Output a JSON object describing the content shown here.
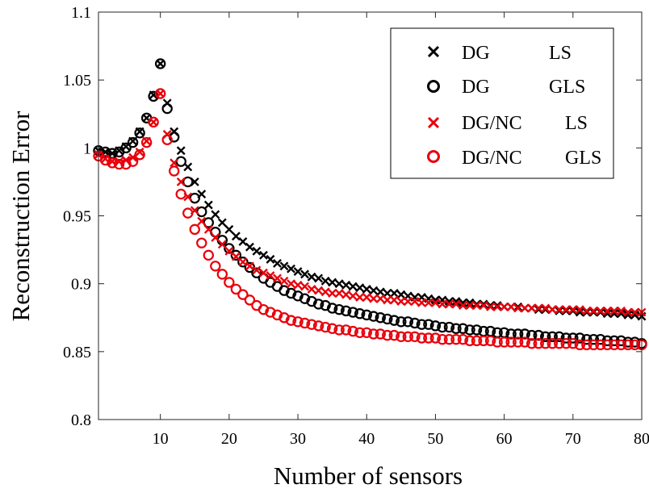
{
  "chart_data": {
    "type": "scatter",
    "title": "",
    "xlabel": "Number of sensors",
    "ylabel": "Reconstruction Error",
    "xlim": [
      1,
      80
    ],
    "ylim": [
      0.8,
      1.1
    ],
    "xticks": [
      10,
      20,
      30,
      40,
      50,
      60,
      70,
      80
    ],
    "yticks": [
      0.8,
      0.85,
      0.9,
      0.95,
      1,
      1.05,
      1.1
    ],
    "xtick_labels": [
      "10",
      "20",
      "30",
      "40",
      "50",
      "60",
      "70",
      "80"
    ],
    "ytick_labels": [
      "0.8",
      "0.85",
      "0.9",
      "0.95",
      "1",
      "1.05",
      "1.1"
    ],
    "grid": false,
    "legend_position": "top-right",
    "legend": [
      {
        "method": "DG",
        "solver": "LS",
        "marker": "x",
        "color": "#000000"
      },
      {
        "method": "DG",
        "solver": "GLS",
        "marker": "o",
        "color": "#000000"
      },
      {
        "method": "DG/NC",
        "solver": "LS",
        "marker": "x",
        "color": "#e8000b"
      },
      {
        "method": "DG/NC",
        "solver": "GLS",
        "marker": "o",
        "color": "#e8000b"
      }
    ],
    "series": [
      {
        "name": "DG LS",
        "marker": "x",
        "color": "#000000",
        "x": [
          1,
          2,
          3,
          4,
          5,
          6,
          7,
          8,
          9,
          10,
          11,
          12,
          13,
          14,
          15,
          16,
          17,
          18,
          19,
          20,
          21,
          22,
          23,
          24,
          25,
          26,
          27,
          28,
          29,
          30,
          31,
          32,
          33,
          34,
          35,
          36,
          37,
          38,
          39,
          40,
          41,
          42,
          43,
          44,
          45,
          46,
          47,
          48,
          49,
          50,
          51,
          52,
          53,
          54,
          55,
          56,
          57,
          58,
          59,
          60,
          61,
          62,
          63,
          64,
          65,
          66,
          67,
          68,
          69,
          70,
          71,
          72,
          73,
          74,
          75,
          76,
          77,
          78,
          79,
          80
        ],
        "y": [
          0.998,
          0.997,
          0.996,
          0.998,
          1.001,
          1.005,
          1.012,
          1.022,
          1.039,
          1.062,
          1.033,
          1.012,
          0.998,
          0.986,
          0.975,
          0.966,
          0.958,
          0.951,
          0.945,
          0.94,
          0.935,
          0.931,
          0.927,
          0.924,
          0.921,
          0.918,
          0.915,
          0.913,
          0.911,
          0.909,
          0.907,
          0.905,
          0.904,
          0.902,
          0.901,
          0.9,
          0.899,
          0.898,
          0.897,
          0.896,
          0.895,
          0.894,
          0.893,
          0.893,
          0.892,
          0.891,
          0.89,
          0.89,
          0.889,
          0.888,
          0.888,
          0.887,
          0.887,
          0.886,
          0.886,
          0.885,
          0.885,
          0.884,
          0.884,
          0.883,
          0.883,
          0.883,
          0.882,
          0.882,
          0.881,
          0.881,
          0.881,
          0.88,
          0.88,
          0.88,
          0.879,
          0.879,
          0.879,
          0.879,
          0.878,
          0.878,
          0.878,
          0.877,
          0.877,
          0.876
        ]
      },
      {
        "name": "DG GLS",
        "marker": "o",
        "color": "#000000",
        "x": [
          1,
          2,
          3,
          4,
          5,
          6,
          7,
          8,
          9,
          10,
          11,
          12,
          13,
          14,
          15,
          16,
          17,
          18,
          19,
          20,
          21,
          22,
          23,
          24,
          25,
          26,
          27,
          28,
          29,
          30,
          31,
          32,
          33,
          34,
          35,
          36,
          37,
          38,
          39,
          40,
          41,
          42,
          43,
          44,
          45,
          46,
          47,
          48,
          49,
          50,
          51,
          52,
          53,
          54,
          55,
          56,
          57,
          58,
          59,
          60,
          61,
          62,
          63,
          64,
          65,
          66,
          67,
          68,
          69,
          70,
          71,
          72,
          73,
          74,
          75,
          76,
          77,
          78,
          79,
          80
        ],
        "y": [
          0.998,
          0.997,
          0.996,
          0.997,
          1.0,
          1.004,
          1.011,
          1.022,
          1.038,
          1.062,
          1.029,
          1.008,
          0.99,
          0.975,
          0.963,
          0.953,
          0.945,
          0.938,
          0.932,
          0.926,
          0.921,
          0.916,
          0.912,
          0.908,
          0.904,
          0.901,
          0.898,
          0.895,
          0.893,
          0.891,
          0.889,
          0.887,
          0.885,
          0.884,
          0.882,
          0.881,
          0.88,
          0.879,
          0.878,
          0.877,
          0.876,
          0.875,
          0.874,
          0.873,
          0.872,
          0.872,
          0.871,
          0.87,
          0.87,
          0.869,
          0.868,
          0.868,
          0.867,
          0.867,
          0.866,
          0.866,
          0.865,
          0.865,
          0.864,
          0.864,
          0.863,
          0.863,
          0.863,
          0.862,
          0.862,
          0.861,
          0.861,
          0.861,
          0.86,
          0.86,
          0.86,
          0.859,
          0.859,
          0.859,
          0.858,
          0.858,
          0.858,
          0.857,
          0.857,
          0.856
        ]
      },
      {
        "name": "DG/NC LS",
        "marker": "x",
        "color": "#e8000b",
        "x": [
          1,
          2,
          3,
          4,
          5,
          6,
          7,
          8,
          9,
          10,
          11,
          12,
          13,
          14,
          15,
          16,
          17,
          18,
          19,
          20,
          21,
          22,
          23,
          24,
          25,
          26,
          27,
          28,
          29,
          30,
          31,
          32,
          33,
          34,
          35,
          36,
          37,
          38,
          39,
          40,
          41,
          42,
          43,
          44,
          45,
          46,
          47,
          48,
          49,
          50,
          51,
          52,
          53,
          54,
          55,
          56,
          57,
          58,
          59,
          60,
          61,
          62,
          63,
          64,
          65,
          66,
          67,
          68,
          69,
          70,
          71,
          72,
          73,
          74,
          75,
          76,
          77,
          78,
          79,
          80
        ],
        "y": [
          0.995,
          0.992,
          0.99,
          0.99,
          0.991,
          0.993,
          0.997,
          1.005,
          1.019,
          1.04,
          1.01,
          0.989,
          0.975,
          0.964,
          0.954,
          0.946,
          0.94,
          0.934,
          0.929,
          0.924,
          0.92,
          0.916,
          0.913,
          0.91,
          0.908,
          0.906,
          0.904,
          0.902,
          0.9,
          0.899,
          0.898,
          0.896,
          0.895,
          0.894,
          0.893,
          0.893,
          0.892,
          0.891,
          0.89,
          0.89,
          0.889,
          0.889,
          0.888,
          0.888,
          0.887,
          0.887,
          0.887,
          0.886,
          0.886,
          0.886,
          0.885,
          0.885,
          0.885,
          0.884,
          0.884,
          0.884,
          0.884,
          0.883,
          0.883,
          0.883,
          0.883,
          0.882,
          0.882,
          0.882,
          0.882,
          0.882,
          0.881,
          0.881,
          0.881,
          0.881,
          0.881,
          0.88,
          0.88,
          0.88,
          0.88,
          0.88,
          0.88,
          0.879,
          0.879,
          0.879
        ]
      },
      {
        "name": "DG/NC GLS",
        "marker": "o",
        "color": "#e8000b",
        "x": [
          1,
          2,
          3,
          4,
          5,
          6,
          7,
          8,
          9,
          10,
          11,
          12,
          13,
          14,
          15,
          16,
          17,
          18,
          19,
          20,
          21,
          22,
          23,
          24,
          25,
          26,
          27,
          28,
          29,
          30,
          31,
          32,
          33,
          34,
          35,
          36,
          37,
          38,
          39,
          40,
          41,
          42,
          43,
          44,
          45,
          46,
          47,
          48,
          49,
          50,
          51,
          52,
          53,
          54,
          55,
          56,
          57,
          58,
          59,
          60,
          61,
          62,
          63,
          64,
          65,
          66,
          67,
          68,
          69,
          70,
          71,
          72,
          73,
          74,
          75,
          76,
          77,
          78,
          79,
          80
        ],
        "y": [
          0.994,
          0.991,
          0.989,
          0.988,
          0.988,
          0.99,
          0.995,
          1.004,
          1.019,
          1.04,
          1.006,
          0.983,
          0.966,
          0.952,
          0.94,
          0.93,
          0.921,
          0.913,
          0.907,
          0.901,
          0.896,
          0.892,
          0.888,
          0.884,
          0.881,
          0.879,
          0.877,
          0.875,
          0.873,
          0.872,
          0.871,
          0.87,
          0.869,
          0.868,
          0.867,
          0.866,
          0.866,
          0.865,
          0.864,
          0.864,
          0.863,
          0.863,
          0.862,
          0.862,
          0.861,
          0.861,
          0.861,
          0.86,
          0.86,
          0.86,
          0.859,
          0.859,
          0.859,
          0.859,
          0.858,
          0.858,
          0.858,
          0.858,
          0.857,
          0.857,
          0.857,
          0.857,
          0.857,
          0.856,
          0.856,
          0.856,
          0.856,
          0.856,
          0.856,
          0.856,
          0.855,
          0.855,
          0.855,
          0.855,
          0.855,
          0.855,
          0.855,
          0.855,
          0.855,
          0.855
        ]
      }
    ]
  }
}
